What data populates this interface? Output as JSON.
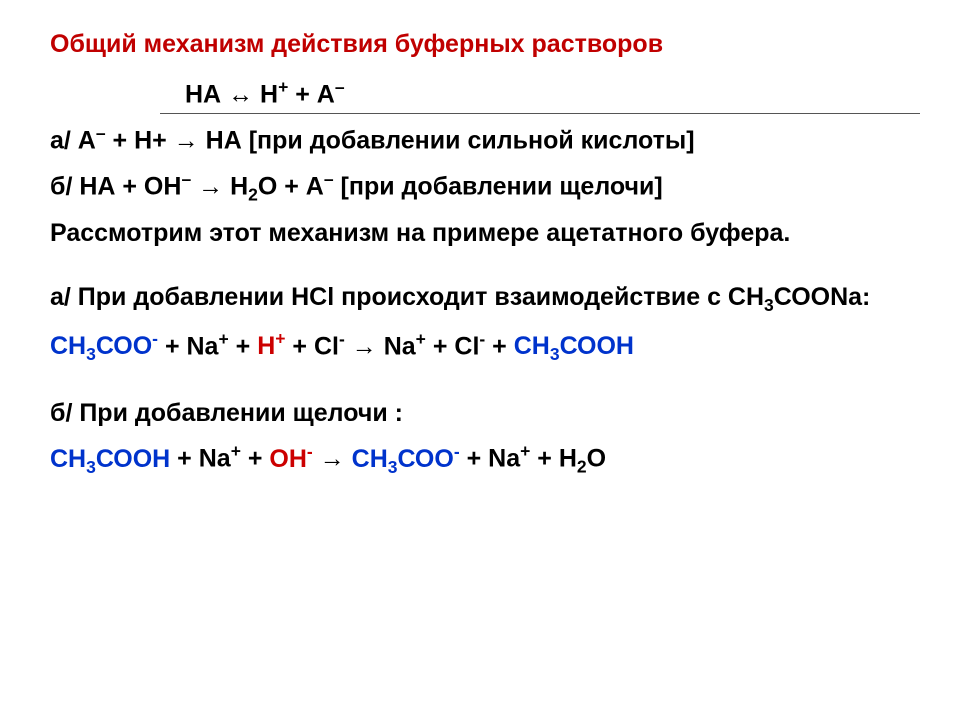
{
  "colors": {
    "title": "#c00000",
    "body": "#000000",
    "acid_blue": "#0033cc",
    "acid_red": "#cc0000"
  },
  "fontsize": {
    "title": 25,
    "body": 25
  },
  "t": {
    "title": "Общий механизм действия буферных растворов",
    "eq0_1": "НА ",
    "eq0_arr": "↔",
    "eq0_2": " Н",
    "eq0_sup1": "+",
    "eq0_3": " + А",
    "eq0_sup2": "–",
    "a1_1": "а/    А",
    "a1_s1": "–",
    "a1_2": " + Н+ ",
    "a1_arr": "→",
    "a1_3": " НА ",
    "a1_4": "[при добавлении сильной кислоты]",
    "b1_1": "б/    НА + ОН",
    "b1_s1": "–",
    "b1_2": " ",
    "b1_arr": "→",
    "b1_3": " Н",
    "b1_sub1": "2",
    "b1_4": "О + А",
    "b1_s2": "–",
    "b1_5": " ",
    "b1_6": "[при добавлении щелочи]",
    "p1": "Рассмотрим этот механизм на примере ацетатного буфера.",
    "a2": "а/ При добавлении HCl происходит взаимодействие с СН",
    "a2_sub": "3",
    "a2_2": "СООNa:",
    "r1_1": "СН",
    "r1_s1": "3",
    "r1_2": "СОО",
    "r1_sup1": "-",
    "r1_3": " + Na",
    "r1_sup2": "+",
    "r1_4": " + ",
    "r1_5": "H",
    "r1_sup3": "+",
    "r1_6": " + Cl",
    "r1_sup4": "-",
    "r1_7": " ",
    "r1_arr": "→",
    "r1_8": " Na",
    "r1_sup5": "+",
    "r1_9": " + Cl",
    "r1_sup6": "-",
    "r1_10": " + ",
    "r1_11": "СН",
    "r1_s2": "3",
    "r1_12": "СООН",
    "b2": "б/ При добавлении щелочи :",
    "r2_1": "СН",
    "r2_s1": "3",
    "r2_2": "СООН",
    "r2_3": " + Na",
    "r2_sup1": "+",
    "r2_4": " + ",
    "r2_5": "OH",
    "r2_sup2": "-",
    "r2_6": " ",
    "r2_arr": "→",
    "r2_7": " ",
    "r2_8": "СН",
    "r2_s2": "3",
    "r2_9": "СОО",
    "r2_sup3": "-",
    "r2_10": " + Na",
    "r2_sup4": "+",
    "r2_11": " + H",
    "r2_sub1": "2",
    "r2_12": "O"
  }
}
